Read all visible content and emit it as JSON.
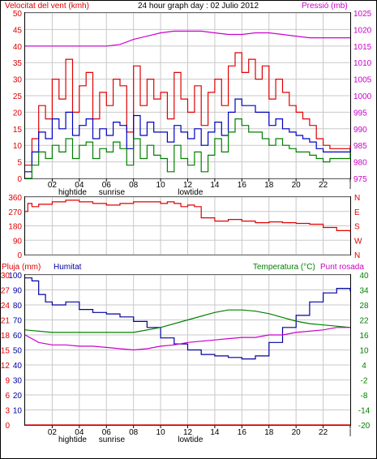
{
  "header": {
    "wind_label": "Velocitat del vent (kmh)",
    "title": "24 hour graph day : 02 Julio 2012",
    "pressure_label": "Pressió (mb)"
  },
  "bottom_header": {
    "rain_label": "Pluja (mm)",
    "humidity_label": "Humitat",
    "temp_label": "Temperatura (°C)",
    "dew_label": "Punt rosada"
  },
  "x_axis": {
    "hour_ticks": [
      "02",
      "04",
      "06",
      "08",
      "10",
      "12",
      "14",
      "16",
      "18",
      "20",
      "22",
      "|"
    ],
    "hour_values": [
      2,
      4,
      6,
      8,
      10,
      12,
      14,
      16,
      18,
      20,
      22,
      24
    ],
    "events": [
      {
        "label": "hightide",
        "hour": 3.5
      },
      {
        "label": "sunrise",
        "hour": 6.4
      },
      {
        "label": "lowtide",
        "hour": 12.2
      }
    ]
  },
  "colors": {
    "wind_gust": "#e00000",
    "wind_avg": "#0000c0",
    "wind_min": "#008000",
    "pressure": "#cc00cc",
    "direction": "#e00000",
    "humidity": "#0000a0",
    "temperature": "#008000",
    "dew": "#cc00cc",
    "rain": "#e00000",
    "grid": "#c8c8c8"
  },
  "chart_data": [
    {
      "type": "line",
      "id": "wind_pressure",
      "title": "24 hour graph day : 02 Julio 2012",
      "xlabel": "",
      "ylabel": "Velocitat del vent (kmh)",
      "y2label": "Pressió (mb)",
      "xlim": [
        0,
        24
      ],
      "ylim": [
        0,
        50
      ],
      "y2lim": [
        975,
        1025
      ],
      "yticks": [
        0,
        5,
        10,
        15,
        20,
        25,
        30,
        35,
        40,
        45,
        50
      ],
      "y2ticks": [
        975,
        980,
        985,
        990,
        995,
        1000,
        1005,
        1010,
        1015,
        1020,
        1025
      ],
      "grid": true,
      "series": [
        {
          "name": "gust",
          "axis": "left",
          "x": [
            0,
            0.5,
            1,
            1.5,
            2,
            2.5,
            3,
            3.5,
            4,
            4.5,
            5,
            5.5,
            6,
            6.5,
            7,
            7.5,
            8,
            8.5,
            9,
            9.5,
            10,
            10.5,
            11,
            11.5,
            12,
            12.5,
            13,
            13.5,
            14,
            14.5,
            15,
            15.5,
            16,
            16.5,
            17,
            17.5,
            18,
            18.5,
            19,
            19.5,
            20,
            20.5,
            21,
            21.5,
            22,
            22.5,
            23,
            23.5,
            24
          ],
          "values": [
            4,
            12,
            22,
            18,
            30,
            24,
            36,
            20,
            28,
            32,
            18,
            26,
            22,
            30,
            28,
            14,
            34,
            22,
            30,
            24,
            26,
            18,
            32,
            24,
            20,
            28,
            16,
            26,
            30,
            22,
            34,
            38,
            32,
            36,
            30,
            34,
            24,
            30,
            26,
            22,
            20,
            18,
            16,
            12,
            10,
            9,
            9,
            9,
            10
          ]
        },
        {
          "name": "average",
          "axis": "left",
          "x": [
            0,
            0.5,
            1,
            1.5,
            2,
            2.5,
            3,
            3.5,
            4,
            4.5,
            5,
            5.5,
            6,
            6.5,
            7,
            7.5,
            8,
            8.5,
            9,
            9.5,
            10,
            10.5,
            11,
            11.5,
            12,
            12.5,
            13,
            13.5,
            14,
            14.5,
            15,
            15.5,
            16,
            16.5,
            17,
            17.5,
            18,
            18.5,
            19,
            19.5,
            20,
            20.5,
            21,
            21.5,
            22,
            22.5,
            23,
            23.5,
            24
          ],
          "values": [
            2,
            8,
            14,
            12,
            18,
            15,
            20,
            13,
            16,
            18,
            12,
            15,
            13,
            17,
            16,
            9,
            19,
            13,
            17,
            14,
            14,
            11,
            16,
            14,
            12,
            15,
            10,
            14,
            17,
            13,
            20,
            24,
            22,
            22,
            20,
            20,
            16,
            18,
            15,
            14,
            13,
            12,
            11,
            9,
            8,
            8,
            8,
            8,
            9
          ]
        },
        {
          "name": "minimum",
          "axis": "left",
          "x": [
            0,
            0.5,
            1,
            1.5,
            2,
            2.5,
            3,
            3.5,
            4,
            4.5,
            5,
            5.5,
            6,
            6.5,
            7,
            7.5,
            8,
            8.5,
            9,
            9.5,
            10,
            10.5,
            11,
            11.5,
            12,
            12.5,
            13,
            13.5,
            14,
            14.5,
            15,
            15.5,
            16,
            16.5,
            17,
            17.5,
            18,
            18.5,
            19,
            19.5,
            20,
            20.5,
            21,
            21.5,
            22,
            22.5,
            23,
            23.5,
            24
          ],
          "values": [
            0,
            4,
            8,
            6,
            10,
            8,
            12,
            6,
            10,
            11,
            6,
            9,
            8,
            11,
            9,
            4,
            12,
            6,
            10,
            7,
            6,
            2,
            10,
            6,
            4,
            8,
            2,
            7,
            12,
            8,
            14,
            18,
            16,
            14,
            14,
            12,
            10,
            12,
            10,
            9,
            8,
            8,
            7,
            6,
            5,
            6,
            6,
            6,
            8
          ]
        },
        {
          "name": "pressure",
          "axis": "right",
          "x": [
            0,
            2,
            4,
            6,
            7,
            8,
            9,
            10,
            11,
            12,
            13,
            14,
            15,
            16,
            17,
            18,
            19,
            20,
            21,
            22,
            23,
            24
          ],
          "values": [
            1015,
            1015,
            1015,
            1015,
            1015.5,
            1017,
            1018,
            1019,
            1019.5,
            1019.5,
            1019.5,
            1019,
            1018.5,
            1018.5,
            1019,
            1019,
            1018.5,
            1018,
            1017.5,
            1017.5,
            1017.5,
            1017.5
          ]
        }
      ]
    },
    {
      "type": "scatter",
      "id": "direction",
      "ylim": [
        0,
        360
      ],
      "yticks": [
        0,
        90,
        180,
        270,
        360
      ],
      "y2ticks": [
        "N",
        "W",
        "S",
        "E",
        "N"
      ],
      "grid": true,
      "series": [
        {
          "name": "direction",
          "x": [
            0,
            0.2,
            0.5,
            1,
            2,
            3,
            4,
            5,
            6,
            7,
            8,
            9,
            10,
            10.5,
            11,
            11.5,
            12,
            12.5,
            13,
            14,
            15,
            16,
            17,
            18,
            19,
            20,
            21,
            22,
            23,
            24
          ],
          "values": [
            270,
            320,
            300,
            315,
            330,
            340,
            330,
            320,
            310,
            320,
            330,
            330,
            320,
            330,
            320,
            300,
            310,
            300,
            230,
            210,
            220,
            210,
            200,
            205,
            200,
            195,
            190,
            170,
            150,
            140
          ]
        }
      ]
    },
    {
      "type": "line",
      "id": "humidity_temp",
      "ylim_rain": [
        0,
        30
      ],
      "ylim_humidity": [
        0,
        100
      ],
      "ylim_temp": [
        -20,
        40
      ],
      "rain_ticks": [
        0,
        3,
        6,
        9,
        12,
        15,
        18,
        21,
        24,
        27,
        30
      ],
      "humidity_ticks": [
        10,
        20,
        30,
        40,
        50,
        60,
        70,
        80,
        90,
        100
      ],
      "temp_ticks": [
        -20,
        -14,
        -8,
        -2,
        4,
        10,
        16,
        22,
        28,
        34,
        40
      ],
      "grid": true,
      "series": [
        {
          "name": "humidity",
          "axis": "humidity",
          "x": [
            0,
            0.5,
            1,
            1.5,
            2,
            3,
            4,
            5,
            6,
            7,
            8,
            9,
            10,
            11,
            12,
            13,
            14,
            15,
            16,
            17,
            18,
            19,
            20,
            21,
            22,
            23,
            24
          ],
          "values": [
            98,
            96,
            87,
            82,
            80,
            82,
            77,
            75,
            74,
            72,
            69,
            65,
            58,
            54,
            50,
            47,
            46,
            45,
            44,
            46,
            55,
            65,
            73,
            82,
            88,
            91,
            89
          ]
        },
        {
          "name": "temperature",
          "axis": "temp",
          "x": [
            0,
            2,
            4,
            6,
            8,
            10,
            12,
            14,
            15,
            16,
            17,
            18,
            19,
            20,
            21,
            22,
            23,
            24
          ],
          "values": [
            18,
            17,
            17,
            17,
            17,
            19,
            22,
            25,
            26,
            26,
            25.5,
            24.5,
            23,
            21.5,
            20.5,
            20,
            19.5,
            19
          ]
        },
        {
          "name": "dew",
          "axis": "temp",
          "x": [
            0,
            1,
            2,
            3,
            4,
            5,
            6,
            7,
            8,
            9,
            10,
            11,
            12,
            13,
            14,
            15,
            16,
            17,
            18,
            19,
            20,
            21,
            22,
            23,
            24
          ],
          "values": [
            16,
            13,
            12,
            12,
            11.5,
            11.5,
            11,
            10.5,
            10,
            10.5,
            11.5,
            12,
            13,
            13.5,
            14,
            14.5,
            15,
            15,
            16,
            16,
            17,
            17.5,
            18,
            19,
            19
          ]
        },
        {
          "name": "rain",
          "axis": "rain",
          "x": [
            0,
            24
          ],
          "values": [
            0,
            0
          ]
        }
      ]
    }
  ]
}
